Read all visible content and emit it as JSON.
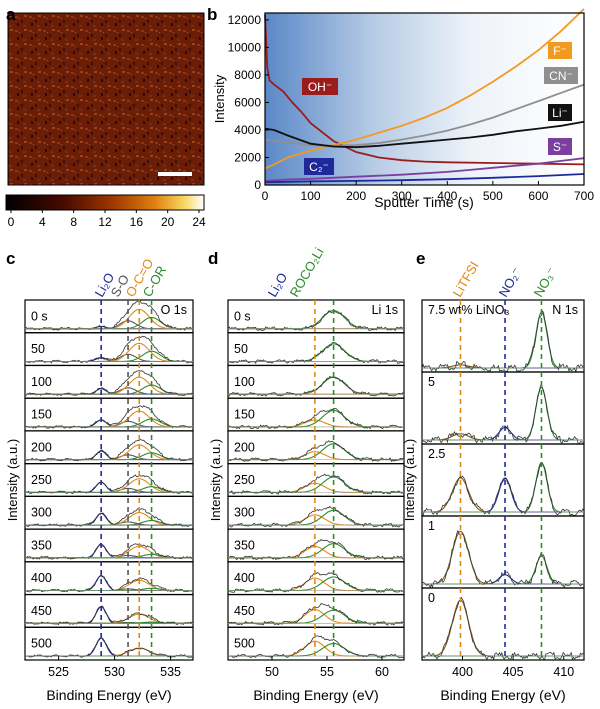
{
  "figure": {
    "panel_labels": [
      "a",
      "b",
      "c",
      "d",
      "e"
    ],
    "colorbar": {
      "ticks": [
        "0",
        "4",
        "8",
        "12",
        "16",
        "20",
        "24"
      ]
    }
  },
  "colors": {
    "OH": "#9b1c1c",
    "F": "#f29a1f",
    "CN": "#8f8f8f",
    "Li": "#111111",
    "S": "#7b3fa0",
    "C2": "#1f2a9a",
    "Li2O": "#1f2a9a",
    "S-O": "#555555",
    "O-C=O": "#e08a16",
    "C-OR": "#2e8b2e",
    "fit_sum": "#7a5a10",
    "LiTFSI": "#e08a16",
    "NO2": "#1f2a9a",
    "NO3": "#2e8b2e"
  },
  "chart_data": [
    {
      "panel": "b",
      "type": "line",
      "xlabel": "Sputter Time (s)",
      "ylabel": "Intensity",
      "xlim": [
        0,
        700
      ],
      "ylim": [
        0,
        12500
      ],
      "xticks": [
        "0",
        "100",
        "200",
        "300",
        "400",
        "500",
        "600",
        "700"
      ],
      "yticks": [
        "0",
        "2000",
        "4000",
        "6000",
        "8000",
        "10000",
        "12000"
      ],
      "series": [
        {
          "name": "OH⁻",
          "x": [
            0,
            5,
            10,
            20,
            40,
            60,
            80,
            100,
            150,
            200,
            250,
            300,
            350,
            400,
            500,
            600,
            700
          ],
          "values": [
            12400,
            8500,
            7600,
            7300,
            6800,
            6000,
            5300,
            4500,
            3200,
            2400,
            2000,
            1800,
            1700,
            1650,
            1600,
            1550,
            1500
          ]
        },
        {
          "name": "F⁻",
          "x": [
            0,
            20,
            50,
            100,
            150,
            200,
            250,
            300,
            350,
            400,
            450,
            500,
            550,
            600,
            650,
            700
          ],
          "values": [
            1200,
            1500,
            2000,
            2500,
            2900,
            3300,
            3800,
            4300,
            4900,
            5600,
            6500,
            7500,
            8600,
            9800,
            11200,
            12800
          ]
        },
        {
          "name": "CN⁻",
          "x": [
            0,
            50,
            100,
            150,
            200,
            250,
            300,
            350,
            400,
            450,
            500,
            550,
            600,
            650,
            700
          ],
          "values": [
            3300,
            3100,
            2900,
            2850,
            2900,
            3050,
            3300,
            3600,
            3950,
            4400,
            4900,
            5500,
            6100,
            6700,
            7300
          ]
        },
        {
          "name": "Li⁻",
          "x": [
            0,
            20,
            50,
            100,
            150,
            200,
            250,
            300,
            350,
            400,
            450,
            500,
            550,
            600,
            650,
            700
          ],
          "values": [
            4100,
            4000,
            3600,
            3000,
            2800,
            2750,
            2850,
            3000,
            3150,
            3300,
            3450,
            3650,
            3900,
            4100,
            4300,
            4600
          ]
        },
        {
          "name": "S⁻",
          "x": [
            0,
            50,
            100,
            200,
            300,
            400,
            450,
            500,
            550,
            600,
            650,
            700
          ],
          "values": [
            300,
            400,
            450,
            600,
            750,
            950,
            1100,
            1250,
            1400,
            1550,
            1750,
            1950
          ]
        },
        {
          "name": "C₂⁻",
          "x": [
            0,
            50,
            100,
            200,
            300,
            400,
            500,
            600,
            700
          ],
          "values": [
            200,
            230,
            260,
            300,
            350,
            420,
            520,
            650,
            800
          ]
        }
      ]
    },
    {
      "panel": "c",
      "type": "line",
      "title": "O 1s",
      "xlabel": "Binding Energy (eV)",
      "ylabel": "Intensity (a.u.)",
      "xlim": [
        522,
        537
      ],
      "xticks": [
        "525",
        "530",
        "535"
      ],
      "stack_labels": [
        "0 s",
        "50",
        "100",
        "150",
        "200",
        "250",
        "300",
        "350",
        "400",
        "450",
        "500"
      ],
      "reference_lines": [
        {
          "name": "Li₂O",
          "x": 528.8
        },
        {
          "name": "S-O",
          "x": 531.2
        },
        {
          "name": "O-C=O",
          "x": 532.2
        },
        {
          "name": "C-OR",
          "x": 533.3
        }
      ],
      "top_labels": [
        "Li₂O",
        "S-O",
        "O-C=O",
        "C-OR"
      ]
    },
    {
      "panel": "d",
      "type": "line",
      "title": "Li 1s",
      "xlabel": "Binding Energy (eV)",
      "ylabel": "Intensity (a.u.)",
      "xlim": [
        46,
        62
      ],
      "xticks": [
        "50",
        "55",
        "60"
      ],
      "stack_labels": [
        "0 s",
        "50",
        "100",
        "150",
        "200",
        "250",
        "300",
        "350",
        "400",
        "450",
        "500"
      ],
      "reference_lines": [
        {
          "name": "Li₂O",
          "x": 53.9
        },
        {
          "name": "ROCO₂Li",
          "x": 55.6
        }
      ],
      "top_labels": [
        "Li₂O",
        "ROCO₂Li"
      ]
    },
    {
      "panel": "e",
      "type": "line",
      "title": "N 1s",
      "xlabel": "Binding Energy (eV)",
      "ylabel": "Intensity (a.u.)",
      "xlim": [
        396,
        412
      ],
      "xticks": [
        "400",
        "405",
        "410"
      ],
      "stack_labels": [
        "7.5 wt% LiNO₃",
        "5",
        "2.5",
        "1",
        "0"
      ],
      "reference_lines": [
        {
          "name": "LiTFSI",
          "x": 399.8
        },
        {
          "name": "NO₂⁻",
          "x": 404.2
        },
        {
          "name": "NO₃⁻",
          "x": 407.8
        }
      ],
      "top_labels": [
        "LiTFSI",
        "NO₂⁻",
        "NO₃⁻"
      ]
    }
  ]
}
